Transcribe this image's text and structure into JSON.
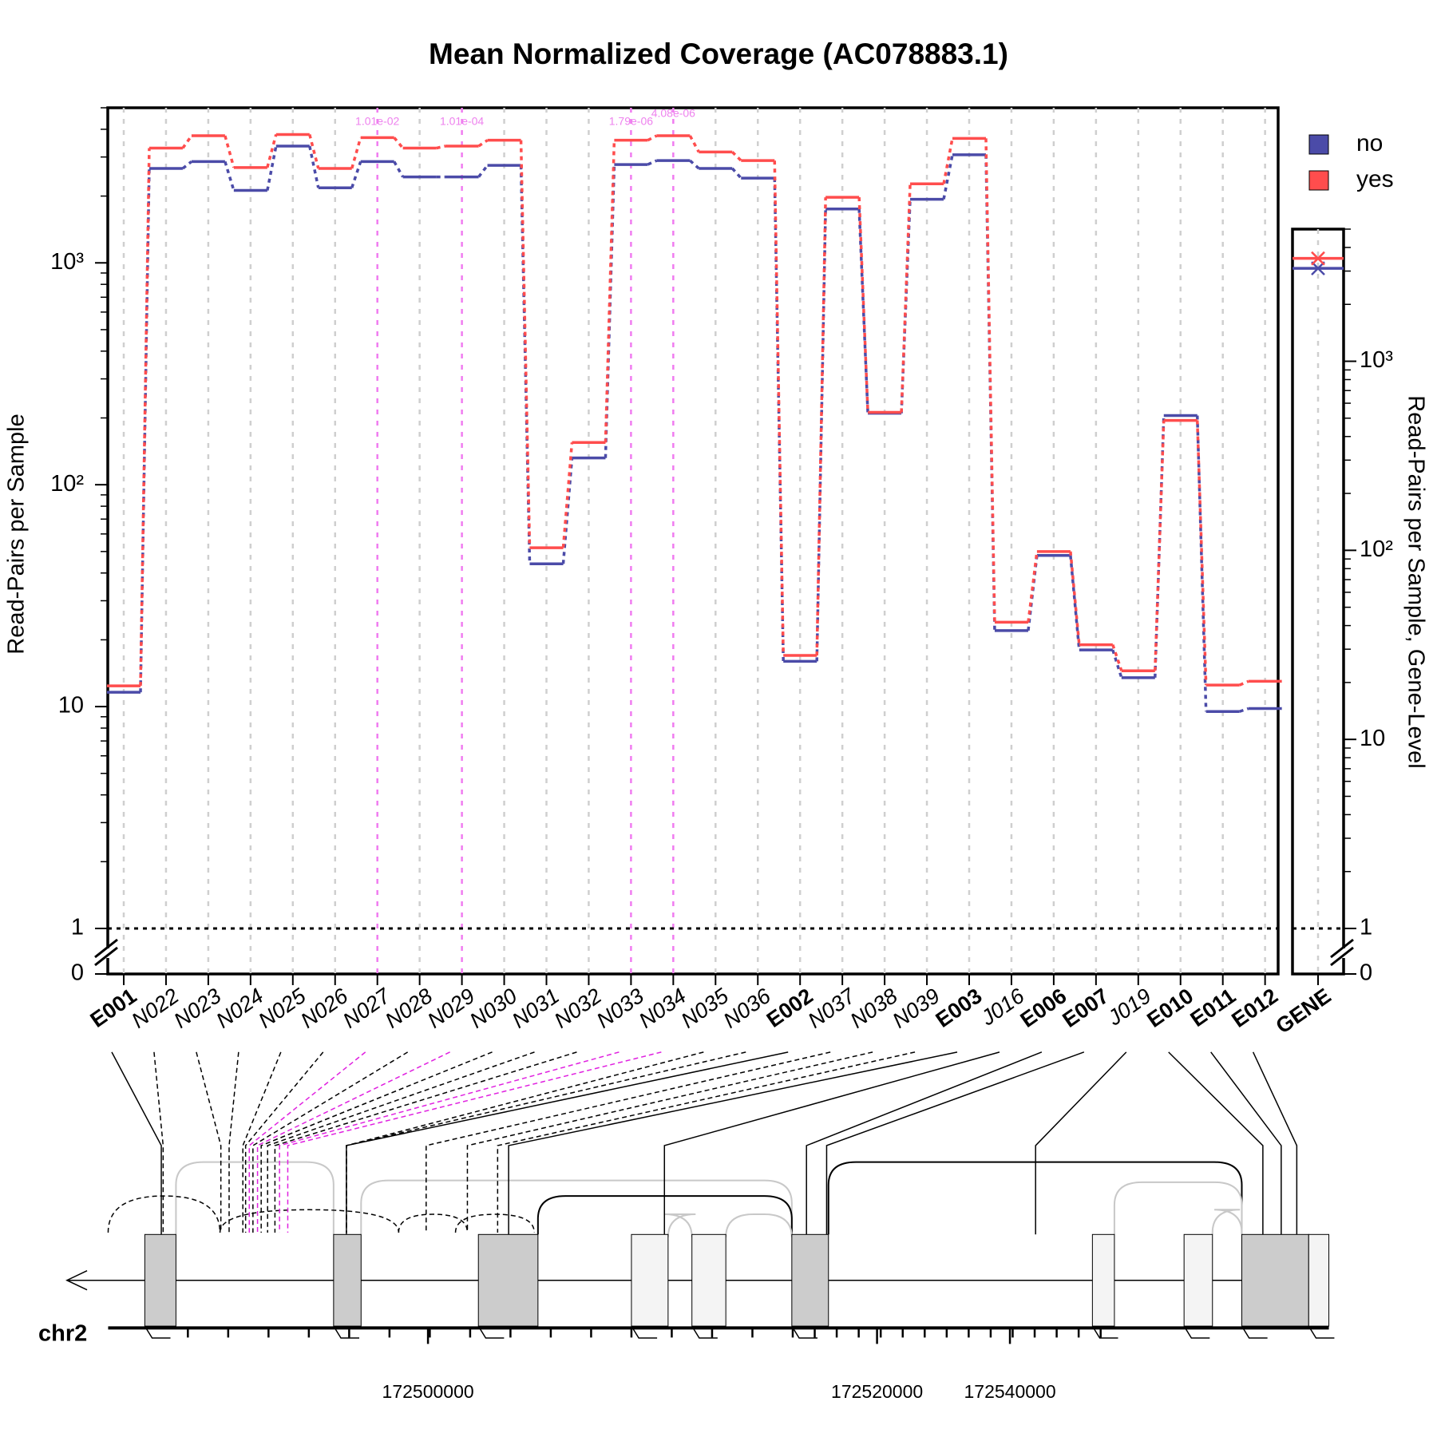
{
  "chart_data": {
    "type": "step",
    "title": "Mean Normalized Coverage (AC078883.1)",
    "y_label": "Read-Pairs per Sample",
    "y2_label": "Read-Pairs per Sample, Gene-Level",
    "log_y": true,
    "ylim": [
      1,
      5000
    ],
    "yticks": [
      {
        "value": 0,
        "label": "0"
      },
      1,
      10,
      {
        "value": 100,
        "label": "10²"
      },
      {
        "value": 1000,
        "label": "10³"
      }
    ],
    "y2lim": [
      1,
      5000
    ],
    "y2ticks": [
      {
        "value": 0,
        "label": "0"
      },
      1,
      10,
      {
        "value": 100,
        "label": "10²"
      },
      {
        "value": 1000,
        "label": "10³"
      }
    ],
    "categories": [
      "E001",
      "N022",
      "N023",
      "N024",
      "N025",
      "N026",
      "N027",
      "N028",
      "N029",
      "N030",
      "N031",
      "N032",
      "N033",
      "N034",
      "N035",
      "N036",
      "E002",
      "N037",
      "N038",
      "N039",
      "E003",
      "J016",
      "E006",
      "E007",
      "J019",
      "E010",
      "E011",
      "E012"
    ],
    "series": [
      {
        "name": "no",
        "color": "#4b4ba8",
        "gene_value": 3100,
        "values": [
          11.6,
          2665,
          2860,
          2120,
          3360,
          2180,
          2860,
          2440,
          2440,
          2750,
          44,
          132,
          2775,
          2890,
          2665,
          2410,
          16,
          1750,
          210,
          1935,
          3070,
          22,
          48,
          18,
          13.5,
          205,
          9.5,
          9.8
        ]
      },
      {
        "name": "yes",
        "color": "#ff4d4d",
        "gene_value": 3500,
        "values": [
          12.4,
          3290,
          3740,
          2690,
          3790,
          2665,
          3670,
          3290,
          3360,
          3570,
          52,
          155,
          3570,
          3740,
          3160,
          2890,
          17,
          1975,
          212,
          2270,
          3640,
          24,
          50,
          19,
          14.5,
          195,
          12.5,
          13
        ]
      }
    ],
    "gene_category": "GENE",
    "threshold": 1,
    "significant": [
      {
        "category": "N027",
        "label": "1.01e-02"
      },
      {
        "category": "N029",
        "label": "1.01e-04"
      },
      {
        "category": "N033",
        "label": "1.79e-06"
      },
      {
        "category": "N034",
        "label": "4.08e-06"
      }
    ],
    "grid": true,
    "legend": "top-right",
    "genome": {
      "chromosome": "chr2",
      "xticks": [
        172500000,
        172520000,
        172540000
      ]
    }
  }
}
